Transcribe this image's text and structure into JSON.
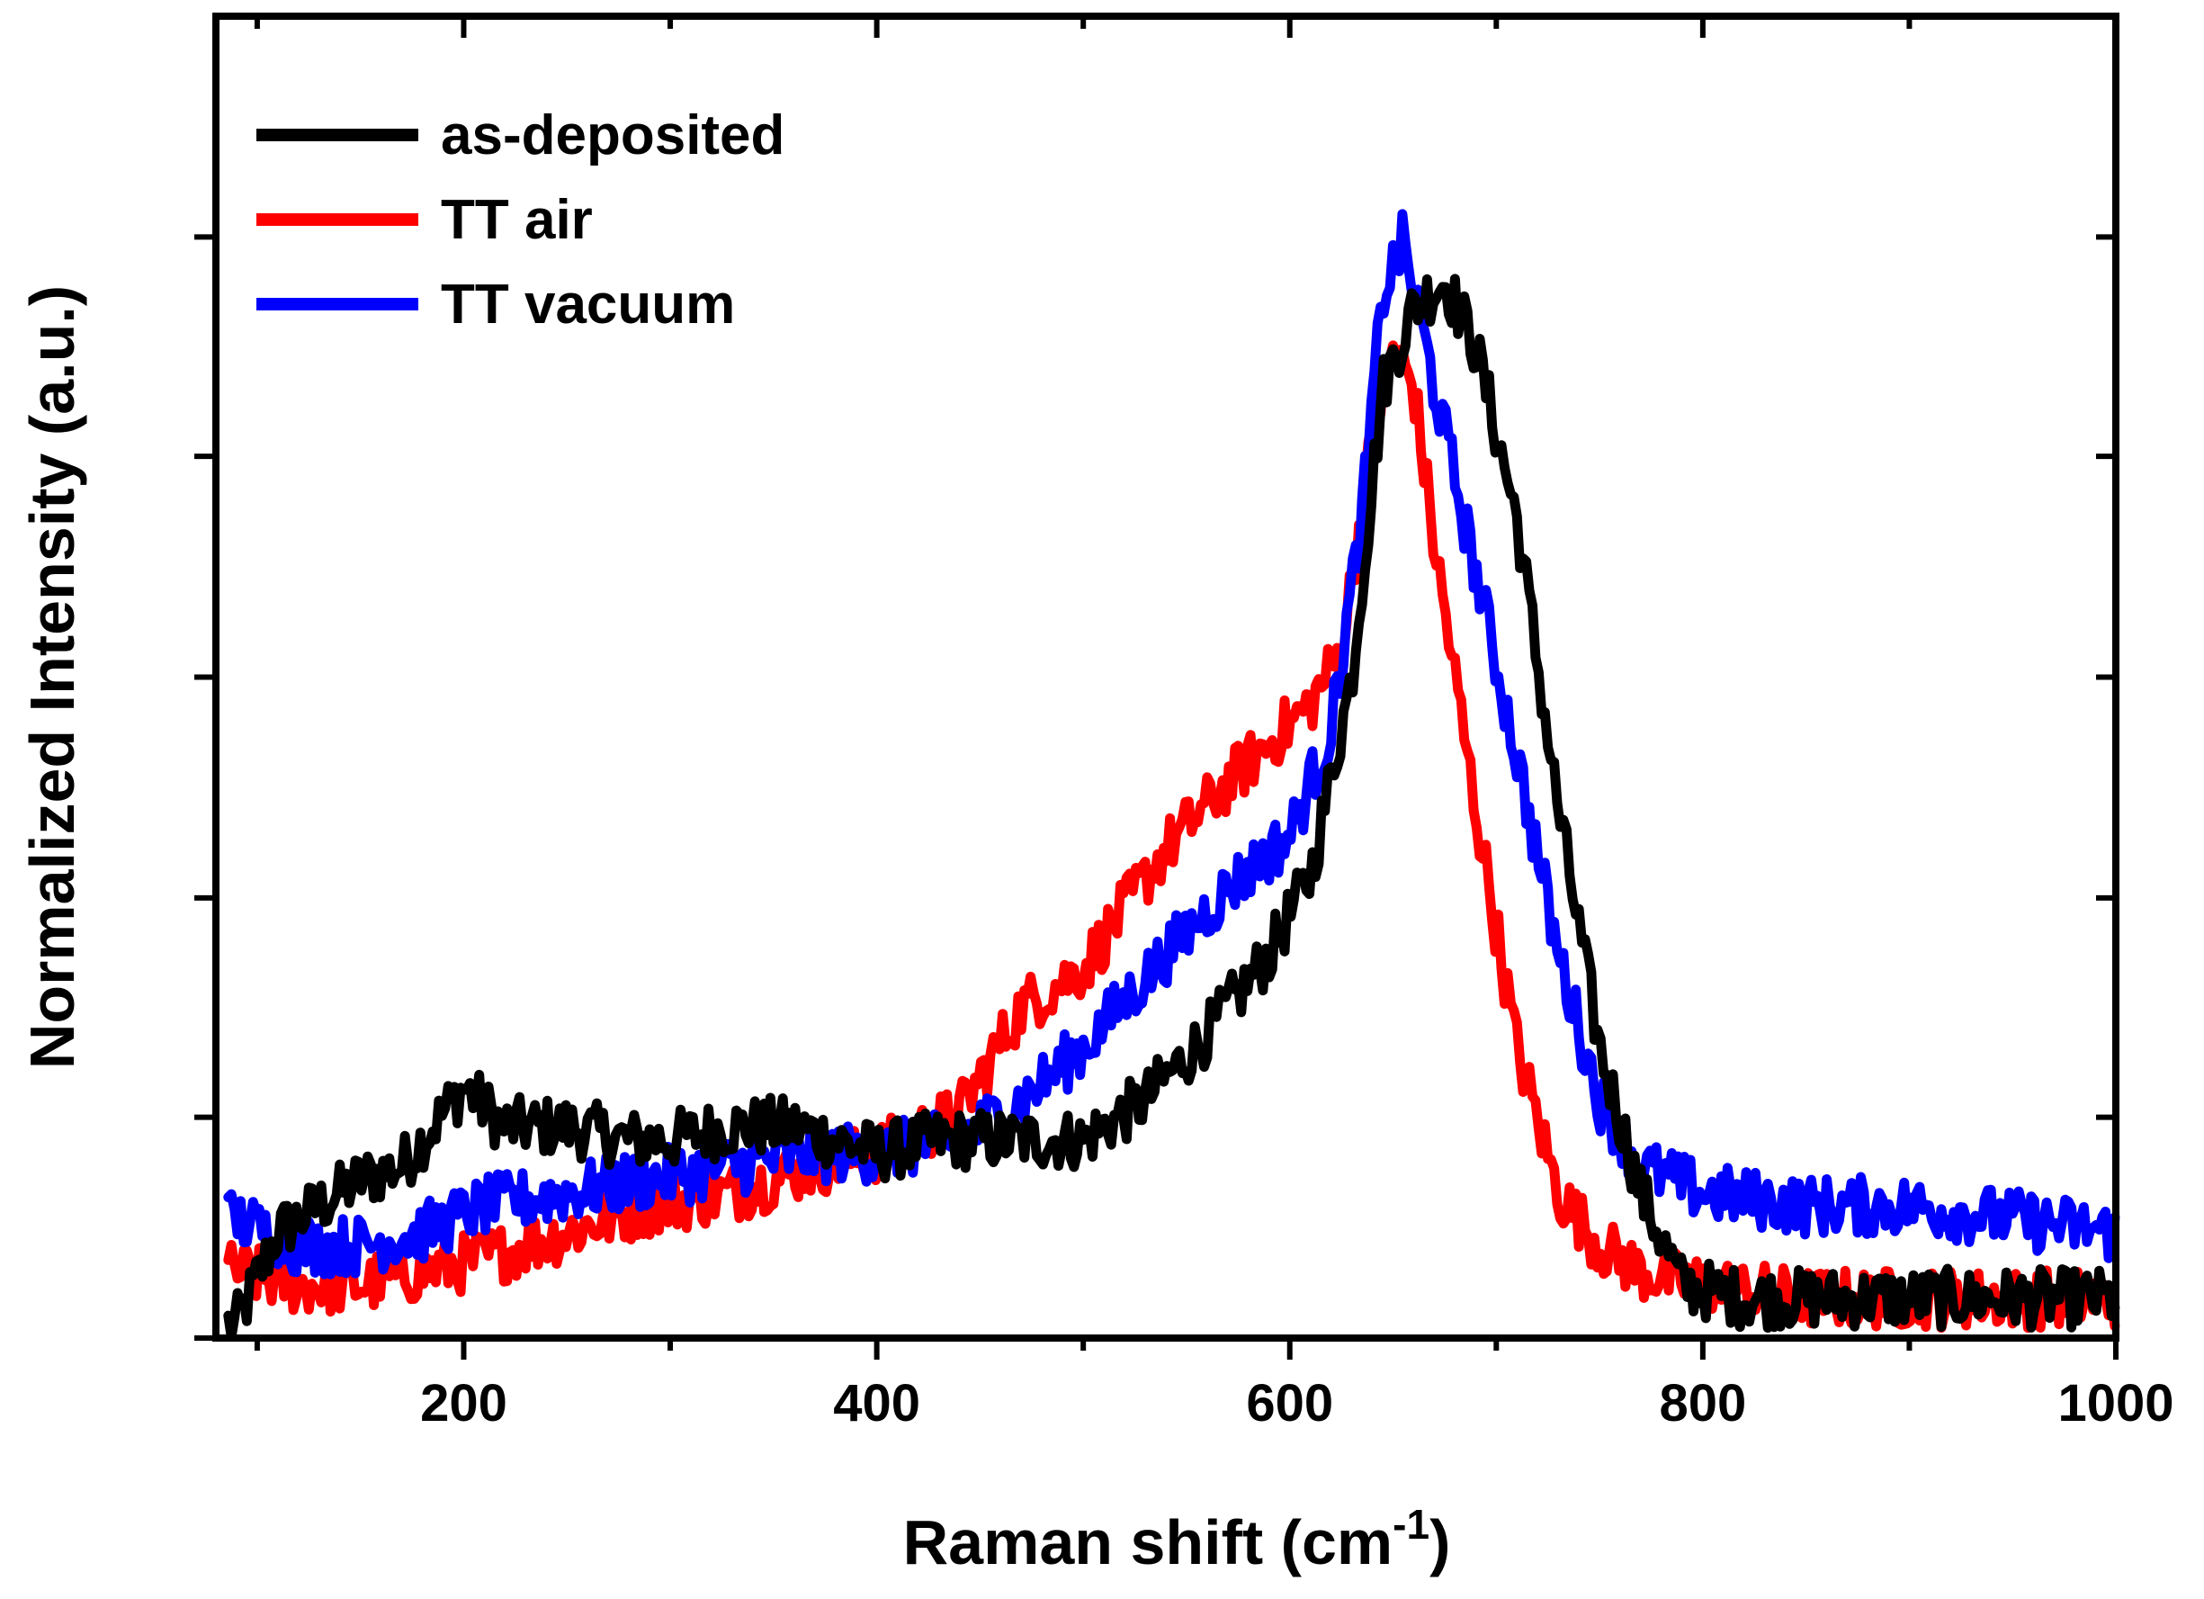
{
  "chart_data": {
    "type": "line",
    "xlabel": "Raman shift (cm",
    "xlabel_superscript": "-1",
    "xlabel_suffix": ")",
    "ylabel": "Normalized Intensity (a.u.)",
    "xlim": [
      80,
      1000
    ],
    "ylim": [
      0,
      1
    ],
    "x_major_ticks": [
      200,
      400,
      600,
      800,
      1000
    ],
    "x_tick_labels": [
      "200",
      "400",
      "600",
      "800",
      "1000"
    ],
    "x_minor_ticks": [
      100,
      300,
      500,
      700,
      900
    ],
    "y_ticks": [
      0,
      0.167,
      0.333,
      0.5,
      0.667,
      0.833
    ],
    "y_tick_labels_shown": false,
    "legend_position": "top-left",
    "series": [
      {
        "name": "as-deposited",
        "color": "#000000",
        "x": [
          90,
          110,
          130,
          150,
          170,
          190,
          200,
          220,
          250,
          280,
          300,
          330,
          360,
          380,
          400,
          430,
          460,
          500,
          530,
          560,
          590,
          610,
          630,
          645,
          660,
          675,
          690,
          710,
          730,
          750,
          770,
          790,
          820,
          860,
          900,
          950,
          1000
        ],
        "y": [
          0.01,
          0.08,
          0.1,
          0.12,
          0.13,
          0.17,
          0.19,
          0.16,
          0.16,
          0.15,
          0.15,
          0.16,
          0.16,
          0.15,
          0.14,
          0.15,
          0.15,
          0.15,
          0.18,
          0.23,
          0.29,
          0.35,
          0.5,
          0.72,
          0.78,
          0.8,
          0.75,
          0.62,
          0.4,
          0.22,
          0.11,
          0.04,
          0.03,
          0.03,
          0.03,
          0.03,
          0.03
        ]
      },
      {
        "name": "TT air",
        "color": "#ff0000",
        "x": [
          90,
          120,
          150,
          180,
          210,
          250,
          290,
          330,
          370,
          400,
          440,
          470,
          500,
          540,
          570,
          590,
          610,
          625,
          640,
          650,
          660,
          670,
          690,
          710,
          730,
          750,
          770,
          800,
          850,
          900,
          950,
          1000
        ],
        "y": [
          0.05,
          0.04,
          0.04,
          0.05,
          0.06,
          0.08,
          0.1,
          0.11,
          0.13,
          0.14,
          0.17,
          0.25,
          0.28,
          0.37,
          0.42,
          0.45,
          0.48,
          0.52,
          0.68,
          0.75,
          0.72,
          0.6,
          0.4,
          0.22,
          0.11,
          0.07,
          0.05,
          0.04,
          0.03,
          0.03,
          0.03,
          0.03
        ]
      },
      {
        "name": "TT vacuum",
        "color": "#0000ff",
        "x": [
          90,
          120,
          150,
          180,
          210,
          250,
          290,
          330,
          370,
          400,
          440,
          470,
          500,
          540,
          570,
          600,
          620,
          635,
          645,
          655,
          670,
          690,
          710,
          730,
          750,
          770,
          800,
          850,
          900,
          950,
          1000
        ],
        "y": [
          0.09,
          0.07,
          0.07,
          0.08,
          0.1,
          0.11,
          0.12,
          0.13,
          0.14,
          0.14,
          0.15,
          0.18,
          0.22,
          0.29,
          0.34,
          0.38,
          0.46,
          0.62,
          0.79,
          0.83,
          0.72,
          0.58,
          0.44,
          0.29,
          0.18,
          0.13,
          0.11,
          0.1,
          0.1,
          0.09,
          0.08
        ]
      }
    ]
  }
}
